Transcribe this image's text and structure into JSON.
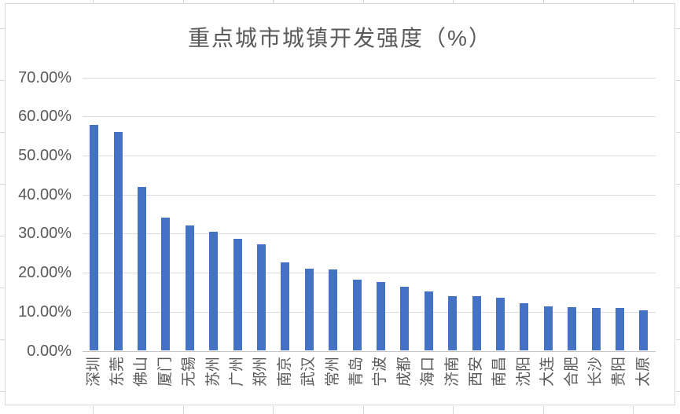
{
  "chart_data": {
    "type": "bar",
    "title": "重点城市城镇开发强度（%）",
    "categories": [
      "深圳",
      "东莞",
      "佛山",
      "厦门",
      "无锡",
      "苏州",
      "广州",
      "郑州",
      "南京",
      "武汉",
      "常州",
      "青岛",
      "宁波",
      "成都",
      "海口",
      "济南",
      "西安",
      "南昌",
      "沈阳",
      "大连",
      "合肥",
      "长沙",
      "贵阳",
      "太原"
    ],
    "values": [
      57.8,
      56.1,
      41.9,
      34.0,
      32.1,
      30.4,
      28.7,
      27.2,
      22.6,
      21.0,
      20.9,
      18.3,
      17.7,
      16.3,
      15.2,
      14.0,
      14.0,
      13.5,
      12.1,
      11.4,
      11.2,
      11.0,
      10.9,
      10.3
    ],
    "xlabel": "",
    "ylabel": "",
    "ylim": [
      0,
      70
    ],
    "yticks": [
      "70.00%",
      "60.00%",
      "50.00%",
      "40.00%",
      "30.00%",
      "20.00%",
      "10.00%",
      "0.00%"
    ],
    "grid": true,
    "legend": false,
    "label_rotation": -90
  },
  "colors": {
    "bar": "#4472C4",
    "gridline": "#DCDCDC",
    "axis_line": "#C6C6C6",
    "text": "#595959",
    "chart_border": "#D9D9D9",
    "sheet_grid": "#D5D5D5",
    "background": "#FFFFFF"
  }
}
